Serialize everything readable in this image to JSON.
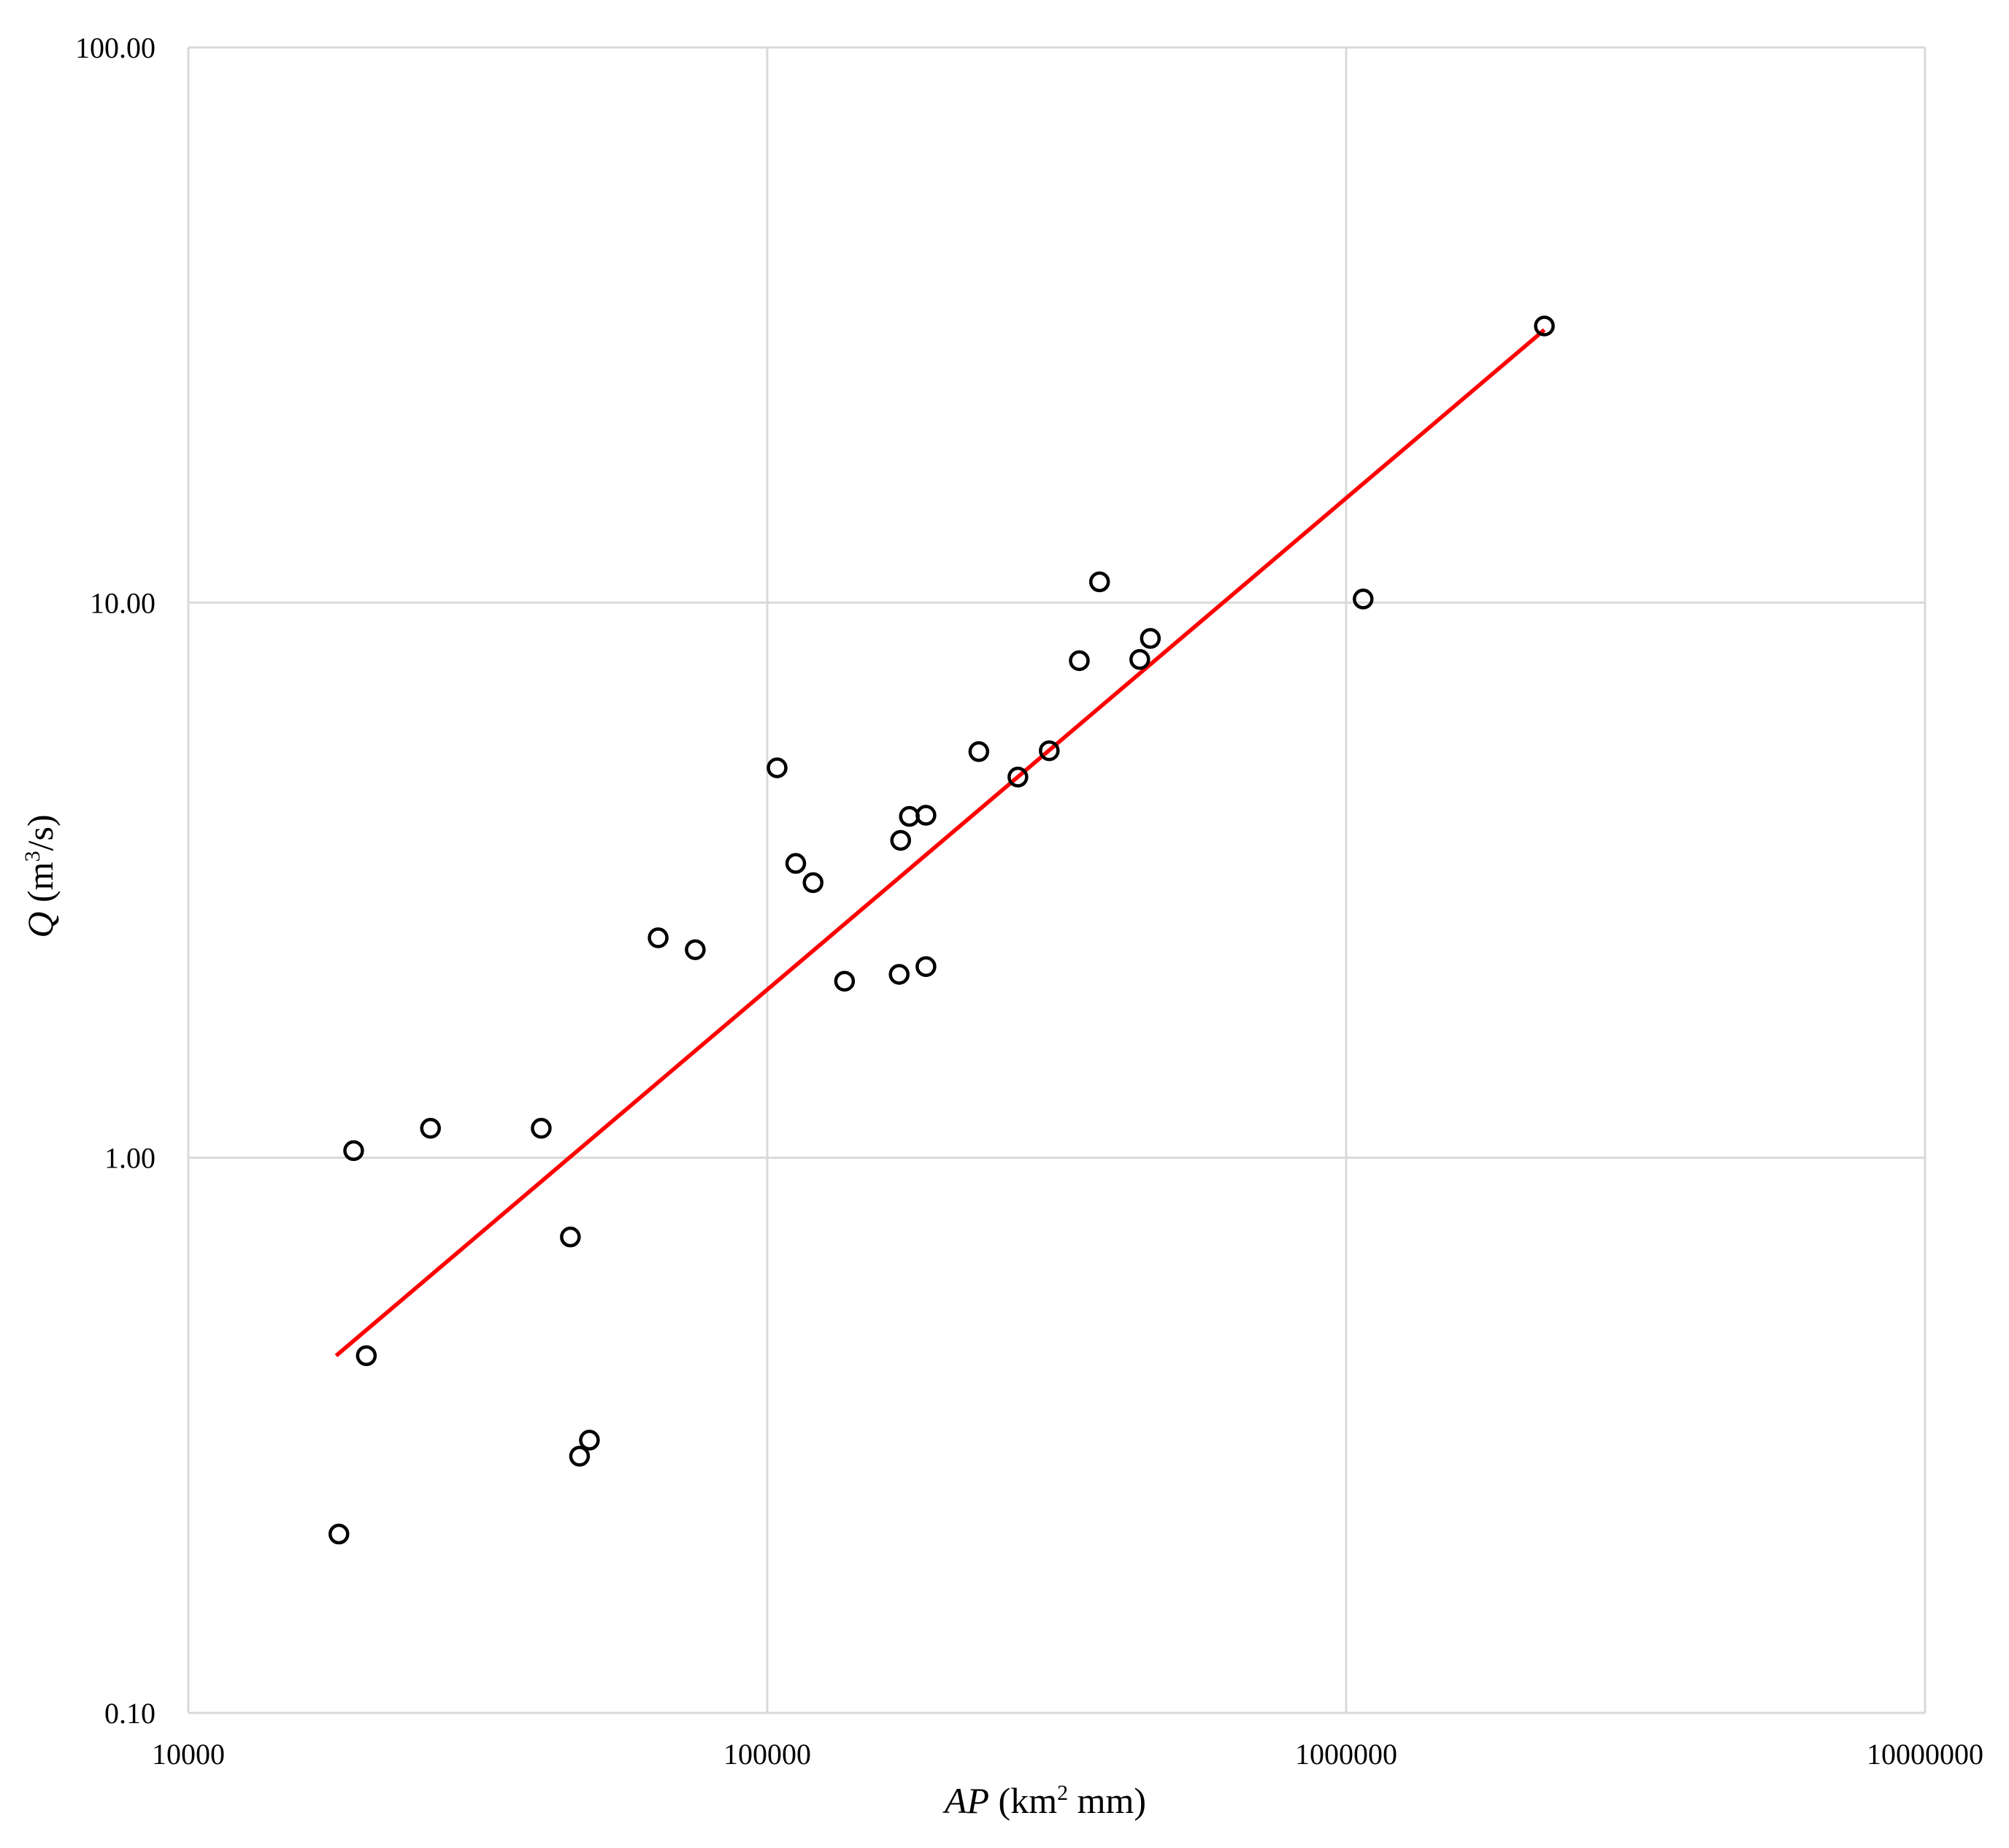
{
  "chart_data": {
    "type": "scatter",
    "scale": "log-log",
    "xlabel": {
      "italic": "AP",
      "prefix": " (km",
      "sup": "2",
      "suffix": " mm)"
    },
    "ylabel": {
      "italic": "Q",
      "prefix": " (m",
      "sup": "3",
      "suffix": "/s)"
    },
    "xlim": [
      10000,
      10000000
    ],
    "ylim": [
      0.1,
      100
    ],
    "x_ticks": [
      {
        "value": 10000,
        "label": "10000"
      },
      {
        "value": 100000,
        "label": "100000"
      },
      {
        "value": 1000000,
        "label": "1000000"
      },
      {
        "value": 10000000,
        "label": "10000000"
      }
    ],
    "y_ticks": [
      {
        "value": 0.1,
        "label": "0.10"
      },
      {
        "value": 1,
        "label": "1.00"
      },
      {
        "value": 10,
        "label": "10.00"
      },
      {
        "value": 100,
        "label": "100.00"
      }
    ],
    "grid": true,
    "marker": "open-circle",
    "marker_color": "#000000",
    "trendline_color": "#ff0000",
    "gridline_color": "#d9d9d9",
    "points": [
      {
        "x": 18200,
        "y": 0.21
      },
      {
        "x": 19300,
        "y": 1.03
      },
      {
        "x": 20300,
        "y": 0.44
      },
      {
        "x": 26200,
        "y": 1.13
      },
      {
        "x": 40700,
        "y": 1.13
      },
      {
        "x": 45700,
        "y": 0.72
      },
      {
        "x": 47400,
        "y": 0.29
      },
      {
        "x": 49300,
        "y": 0.31
      },
      {
        "x": 64800,
        "y": 2.49
      },
      {
        "x": 75100,
        "y": 2.37
      },
      {
        "x": 104000,
        "y": 5.04
      },
      {
        "x": 112000,
        "y": 3.39
      },
      {
        "x": 120000,
        "y": 3.13
      },
      {
        "x": 136000,
        "y": 2.08
      },
      {
        "x": 169000,
        "y": 2.14
      },
      {
        "x": 170000,
        "y": 3.73
      },
      {
        "x": 176000,
        "y": 4.12
      },
      {
        "x": 188000,
        "y": 4.14
      },
      {
        "x": 188000,
        "y": 2.21
      },
      {
        "x": 232000,
        "y": 5.39
      },
      {
        "x": 271000,
        "y": 4.85
      },
      {
        "x": 307000,
        "y": 5.41
      },
      {
        "x": 346000,
        "y": 7.86
      },
      {
        "x": 375000,
        "y": 10.9
      },
      {
        "x": 440000,
        "y": 7.9
      },
      {
        "x": 459000,
        "y": 8.62
      },
      {
        "x": 1070000,
        "y": 10.15
      },
      {
        "x": 2200000,
        "y": 31.5
      }
    ],
    "trendline": {
      "type": "power",
      "points": [
        {
          "x": 18000,
          "y": 0.44
        },
        {
          "x": 2200000,
          "y": 31.0
        }
      ]
    }
  }
}
